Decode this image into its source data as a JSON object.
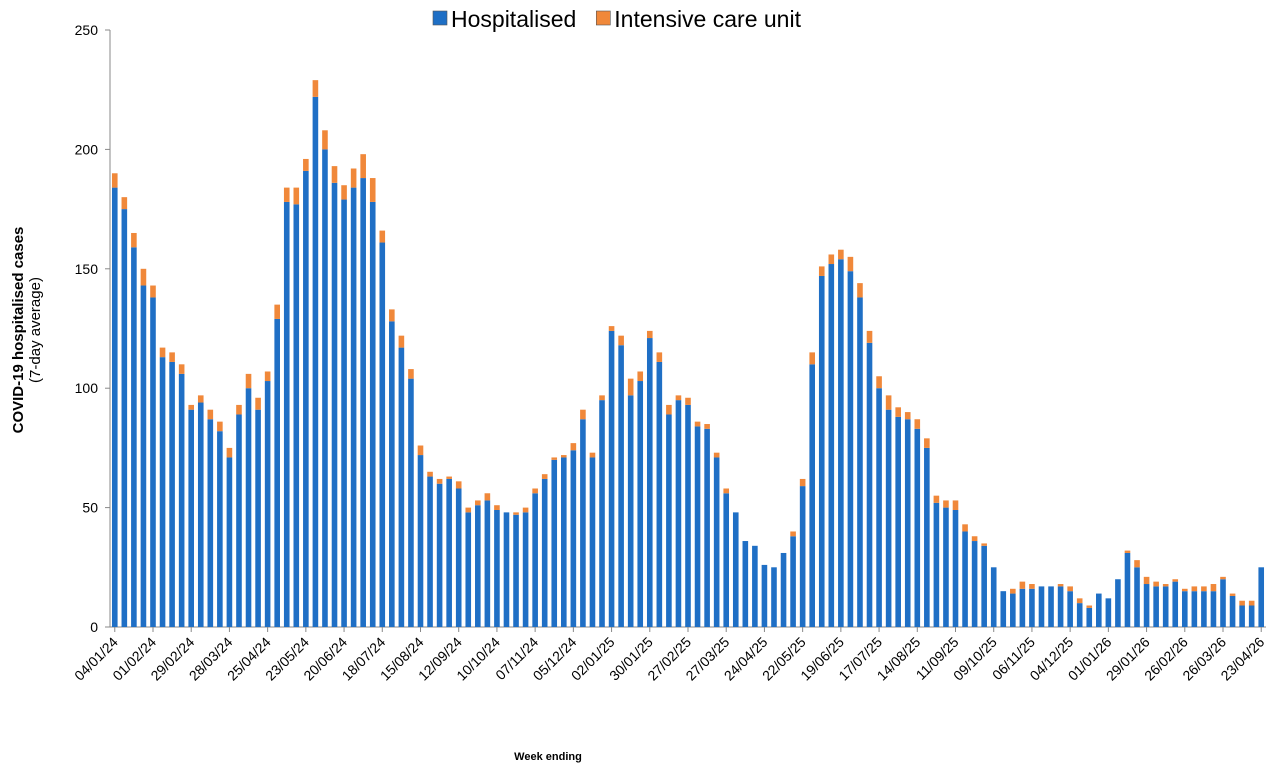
{
  "chart_data": {
    "type": "stacked_bar",
    "categories": [
      "04/01/24",
      null,
      null,
      null,
      "01/02/24",
      null,
      null,
      null,
      "29/02/24",
      null,
      null,
      null,
      "28/03/24",
      null,
      null,
      null,
      "25/04/24",
      null,
      null,
      null,
      "23/05/24",
      null,
      null,
      null,
      "20/06/24",
      null,
      null,
      null,
      "18/07/24",
      null,
      null,
      null,
      "15/08/24",
      null,
      null,
      null,
      "12/09/24",
      null,
      null,
      null,
      "10/10/24",
      null,
      null,
      null,
      "07/11/24",
      null,
      null,
      null,
      "05/12/24",
      null,
      null,
      null,
      "02/01/25",
      null,
      null,
      null,
      "30/01/25",
      null,
      null,
      null,
      "27/02/25",
      null,
      null,
      null,
      "27/03/25",
      null,
      null,
      null,
      "24/04/25",
      null,
      null,
      null,
      "22/05/25",
      null,
      null,
      null,
      "19/06/25",
      null,
      null,
      null,
      "17/07/25",
      null,
      null,
      null,
      "14/08/25",
      null,
      null,
      null,
      "11/09/25",
      null,
      null,
      null,
      "09/10/25",
      null,
      null,
      null,
      "06/11/25",
      null,
      null,
      null,
      "04/12/25",
      null,
      null,
      null,
      "01/01/26",
      null,
      null,
      null,
      "29/01/26",
      null,
      null,
      null,
      "26/02/26",
      null,
      null,
      null,
      "26/03/26",
      null,
      null,
      null,
      "23/04/26"
    ],
    "series": [
      {
        "name": "Hospitalised",
        "color": "#1f6fc5",
        "values": [
          184,
          175,
          159,
          143,
          138,
          113,
          111,
          106,
          91,
          94,
          87,
          82,
          71,
          89,
          100,
          91,
          103,
          129,
          178,
          177,
          191,
          222,
          200,
          186,
          179,
          184,
          188,
          178,
          161,
          128,
          117,
          104,
          72,
          63,
          60,
          62,
          58,
          48,
          51,
          53,
          49,
          48,
          47,
          48,
          56,
          62,
          70,
          71,
          74,
          87,
          71,
          95,
          124,
          118,
          97,
          103,
          121,
          111,
          89,
          95,
          93,
          84,
          83,
          71,
          56,
          48,
          36,
          34,
          26,
          25,
          31,
          38,
          59,
          110,
          147,
          152,
          154,
          149,
          138,
          119,
          100,
          91,
          88,
          87,
          83,
          75,
          52,
          50,
          49,
          40,
          36,
          34,
          25,
          15,
          14,
          16,
          16,
          17,
          17,
          17,
          15,
          10,
          8,
          14,
          12,
          20,
          31,
          25,
          18,
          17,
          17,
          19,
          15,
          15,
          15,
          15,
          20,
          13,
          9,
          9,
          25
        ]
      },
      {
        "name": "Intensive care unit",
        "color": "#f0883a",
        "values": [
          6,
          5,
          6,
          7,
          5,
          4,
          4,
          4,
          2,
          3,
          4,
          4,
          4,
          4,
          6,
          5,
          4,
          6,
          6,
          7,
          5,
          7,
          8,
          7,
          6,
          8,
          10,
          10,
          5,
          5,
          5,
          4,
          4,
          2,
          2,
          1,
          3,
          2,
          2,
          3,
          2,
          0,
          1,
          2,
          2,
          2,
          1,
          1,
          3,
          4,
          2,
          2,
          2,
          4,
          7,
          4,
          3,
          4,
          4,
          2,
          3,
          2,
          2,
          2,
          2,
          0,
          0,
          0,
          0,
          0,
          0,
          2,
          3,
          5,
          4,
          4,
          4,
          6,
          6,
          5,
          5,
          6,
          4,
          3,
          4,
          4,
          3,
          3,
          4,
          3,
          2,
          1,
          0,
          0,
          2,
          3,
          2,
          0,
          0,
          1,
          2,
          2,
          1,
          0,
          0,
          0,
          1,
          3,
          3,
          2,
          1,
          1,
          1,
          2,
          2,
          3,
          1,
          1,
          2,
          2,
          0
        ]
      }
    ],
    "ylabel": "COVID-19 hospitalised cases",
    "ylabel_sub": "(7-day average)",
    "xlabel": "Week ending",
    "ylim": [
      0,
      250
    ],
    "yticks": [
      0,
      50,
      100,
      150,
      200,
      250
    ],
    "legend": "top",
    "grid": false
  }
}
